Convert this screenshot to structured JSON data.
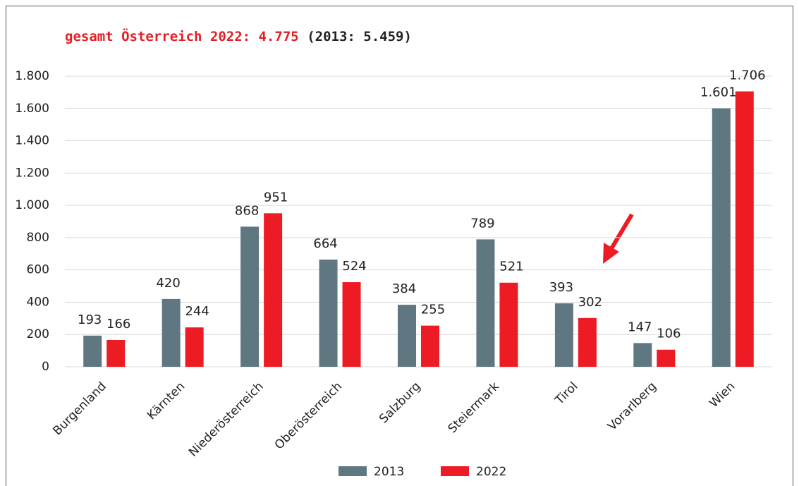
{
  "chart_data": {
    "type": "bar",
    "title": "gesamt Österreich 2022: 4.775",
    "title_note": "(2013: 5.459)",
    "categories": [
      "Burgenland",
      "Kärnten",
      "Niederösterreich",
      "Oberösterreich",
      "Salzburg",
      "Steiermark",
      "Tirol",
      "Vorarlberg",
      "Wien"
    ],
    "series": [
      {
        "name": "2013",
        "color": "#5f7780",
        "values": [
          193,
          420,
          868,
          664,
          384,
          789,
          393,
          147,
          1601
        ],
        "value_labels": [
          "193",
          "420",
          "868",
          "664",
          "384",
          "789",
          "393",
          "147",
          "1.601"
        ]
      },
      {
        "name": "2022",
        "color": "#ed1c24",
        "values": [
          166,
          244,
          951,
          524,
          255,
          521,
          302,
          106,
          1706
        ],
        "value_labels": [
          "166",
          "244",
          "951",
          "524",
          "255",
          "521",
          "302",
          "106",
          "1.706"
        ]
      }
    ],
    "ylim": [
      0,
      1800
    ],
    "yticks": [
      0,
      200,
      400,
      600,
      800,
      {
        "value": 1000,
        "label": "1.000"
      },
      {
        "value": 1200,
        "label": "1.200"
      },
      {
        "value": 1400,
        "label": "1.400"
      },
      {
        "value": 1600,
        "label": "1.600"
      },
      {
        "value": 1800,
        "label": "1.800"
      }
    ],
    "grid": true,
    "legend": "bottom"
  }
}
